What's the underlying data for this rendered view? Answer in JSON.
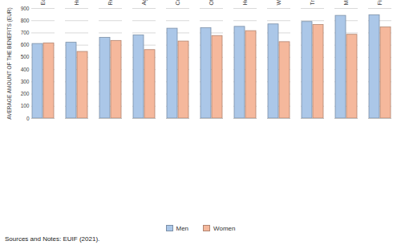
{
  "chart_data": {
    "type": "bar",
    "y_label": "AVERAGE AMOUNT OF THE BENEFITS (EUR)",
    "categories": [
      "Education",
      "Hotels and restaurants",
      "Real estate and business activities",
      "Agriculture and fishing",
      "Construction",
      "Other sectors (incl. arts,...",
      "Health and social work",
      "Wholesale and retail trade",
      "Transport and communication",
      "Mining, manufacturing and utilities",
      "Financial intermediation"
    ],
    "series": [
      {
        "name": "Men",
        "color": "#abc7e8",
        "values": [
          610,
          620,
          660,
          680,
          735,
          740,
          750,
          770,
          790,
          840,
          845
        ]
      },
      {
        "name": "Women",
        "color": "#f5b89c",
        "values": [
          615,
          545,
          635,
          560,
          630,
          675,
          715,
          625,
          765,
          685,
          745
        ]
      }
    ],
    "ylim": [
      0,
      900
    ],
    "yticks": [
      0,
      100,
      200,
      300,
      400,
      500,
      600,
      700,
      800,
      900
    ],
    "grid": true,
    "legend": "bottom",
    "caption": "Sources and Notes: EUIF (2021)."
  }
}
